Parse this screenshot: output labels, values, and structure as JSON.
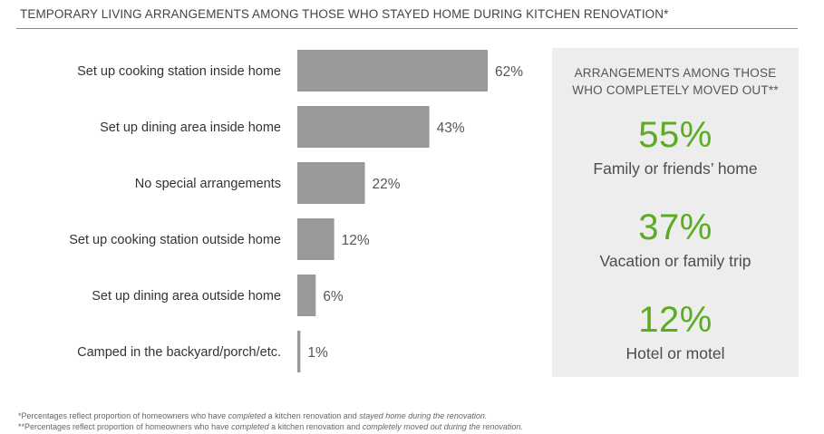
{
  "title": "TEMPORARY LIVING ARRANGEMENTS AMONG THOSE WHO STAYED HOME DURING KITCHEN RENOVATION*",
  "chart_data": {
    "type": "bar",
    "orientation": "horizontal",
    "categories": [
      "Set up cooking station inside home",
      "Set up dining area inside home",
      "No special arrangements",
      "Set up cooking station outside home",
      "Set up dining area outside home",
      "Camped in the backyard/porch/etc."
    ],
    "values": [
      62,
      43,
      22,
      12,
      6,
      1
    ],
    "value_labels": [
      "62%",
      "43%",
      "22%",
      "12%",
      "6%",
      "1%"
    ],
    "bar_color": "#999999",
    "grid": false,
    "legend": "none"
  },
  "panel": {
    "heading_line1": "ARRANGEMENTS AMONG THOSE",
    "heading_line2": "WHO COMPLETELY MOVED OUT**",
    "accent_color": "#5cac23",
    "background_color": "#ededed",
    "stats": [
      {
        "pct": "55%",
        "label": "Family or friends’ home"
      },
      {
        "pct": "37%",
        "label": "Vacation or family trip"
      },
      {
        "pct": "12%",
        "label": "Hotel or motel"
      }
    ]
  },
  "footnotes": {
    "note1_a": "*Percentages reflect proportion of homeowners who have ",
    "note1_b": "completed",
    "note1_c": " a kitchen renovation and ",
    "note1_d": "stayed home during the renovation.",
    "note2_a": "**Percentages reflect proportion of homeowners who have ",
    "note2_b": "completed",
    "note2_c": " a kitchen renovation and ",
    "note2_d": "completely moved out during the renovation."
  }
}
